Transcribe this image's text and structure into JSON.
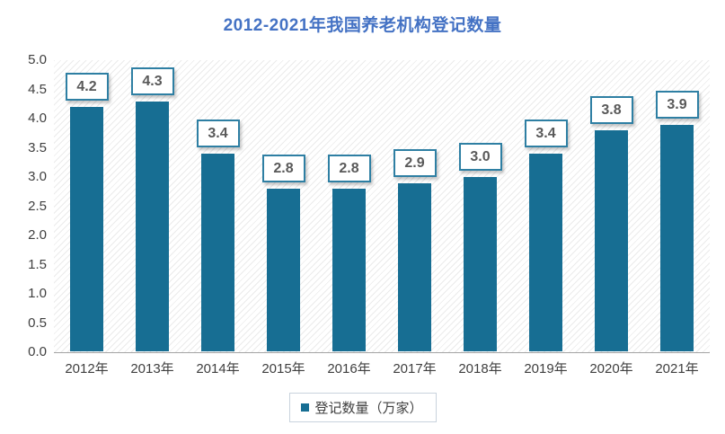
{
  "title": "2012-2021年我国养老机构登记数量",
  "colors": {
    "title": "#4472c4",
    "bar": "#176e93",
    "label_border": "#2e7fa3",
    "label_text": "#595959",
    "axis_text": "#3f3f3f",
    "axis_line": "#a3a3a3",
    "legend_border": "#c9d3dd"
  },
  "chart_data": {
    "type": "bar",
    "title": "2012-2021年我国养老机构登记数量",
    "categories": [
      "2012年",
      "2013年",
      "2014年",
      "2015年",
      "2016年",
      "2017年",
      "2018年",
      "2019年",
      "2020年",
      "2021年"
    ],
    "values": [
      4.2,
      4.3,
      3.4,
      2.8,
      2.8,
      2.9,
      3.0,
      3.4,
      3.8,
      3.9
    ],
    "data_labels": [
      "4.2",
      "4.3",
      "3.4",
      "2.8",
      "2.8",
      "2.9",
      "3.0",
      "3.4",
      "3.8",
      "3.9"
    ],
    "xlabel": "",
    "ylabel": "",
    "ylim": [
      0,
      5
    ],
    "yticks": [
      "5.0",
      "4.5",
      "4.0",
      "3.5",
      "3.0",
      "2.5",
      "2.0",
      "1.5",
      "1.0",
      "0.5",
      "0.0"
    ],
    "grid": false,
    "plot_background": "diagonal-hatch",
    "legend": [
      "登记数量（万家）"
    ],
    "legend_position": "bottom"
  }
}
